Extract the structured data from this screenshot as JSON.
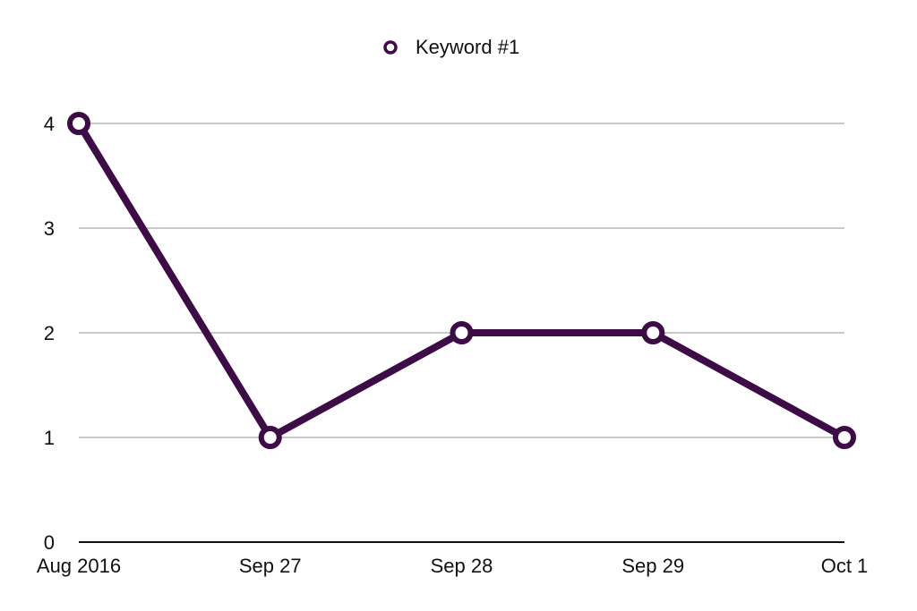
{
  "chart_data": {
    "type": "line",
    "categories": [
      "Aug 2016",
      "Sep 27",
      "Sep 28",
      "Sep 29",
      "Oct 1"
    ],
    "series": [
      {
        "name": "Keyword #1",
        "values": [
          4,
          1,
          2,
          2,
          1
        ]
      }
    ],
    "y_ticks": [
      "0",
      "1",
      "2",
      "3",
      "4"
    ],
    "ylim": [
      0,
      4
    ],
    "grid": true,
    "legend_position": "top-center",
    "colors": {
      "series": "#3d0b45",
      "grid": "#b5b5b5",
      "axis": "#111111",
      "marker_fill": "#ffffff"
    }
  }
}
